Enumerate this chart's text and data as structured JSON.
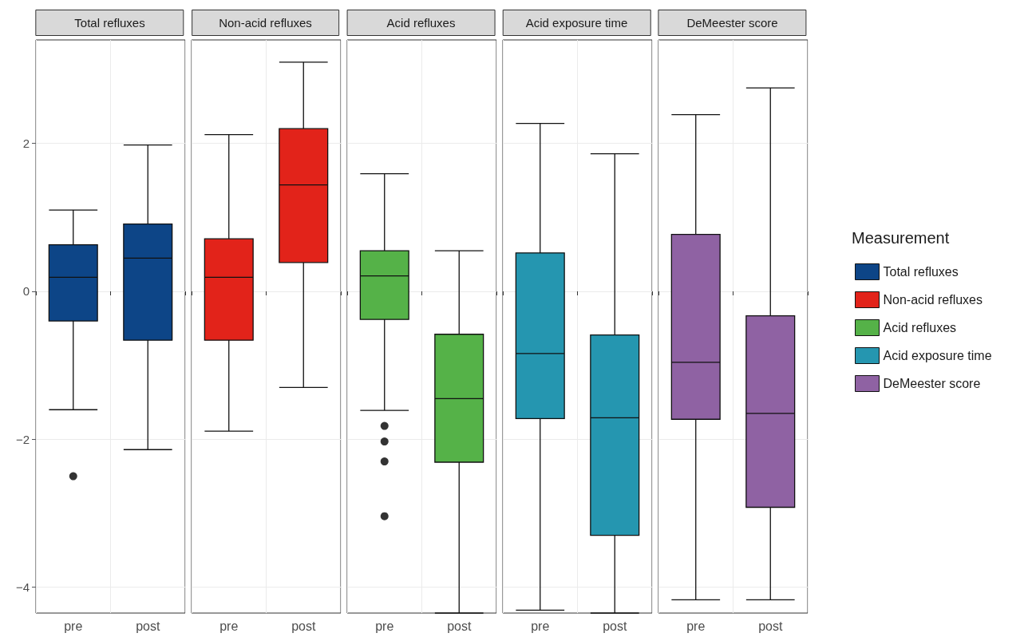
{
  "chart_data": [
    {
      "type": "box",
      "title": "Total refluxes",
      "categories": [
        "pre",
        "post"
      ],
      "ylim": [
        -4.35,
        3.4
      ],
      "yticks": [
        -4,
        -2,
        0,
        2
      ],
      "grid": true,
      "legend": "right",
      "series": [
        {
          "name": "Total refluxes",
          "color": "#0d4587",
          "boxes": [
            {
              "low": -1.6,
              "q1": -0.4,
              "median": 0.19,
              "q3": 0.63,
              "high": 1.1,
              "outliers": [
                -2.5
              ]
            },
            {
              "low": -2.14,
              "q1": -0.66,
              "median": 0.45,
              "q3": 0.91,
              "high": 1.98
            }
          ]
        }
      ]
    },
    {
      "type": "box",
      "title": "Non-acid refluxes",
      "categories": [
        "pre",
        "post"
      ],
      "ylim": [
        -4.35,
        3.4
      ],
      "yticks": [
        -4,
        -2,
        0,
        2
      ],
      "grid": true,
      "tick_labels": "x",
      "legend": "right",
      "series": [
        {
          "name": "Non-acid refluxes",
          "color": "#e2231a",
          "boxes": [
            {
              "low": -1.89,
              "q1": -0.66,
              "median": 0.19,
              "q3": 0.71,
              "high": 2.12
            },
            {
              "low": -1.3,
              "q1": 0.39,
              "median": 1.44,
              "q3": 2.2,
              "high": 3.1
            }
          ]
        }
      ]
    },
    {
      "type": "box",
      "title": "Acid refluxes",
      "categories": [
        "pre",
        "post"
      ],
      "ylim": [
        -4.35,
        3.4
      ],
      "yticks": [
        -4,
        -2,
        0,
        2
      ],
      "grid": true,
      "tick_labels": "x",
      "legend": "right",
      "series": [
        {
          "name": "Acid refluxes",
          "color": "#55b248",
          "boxes": [
            {
              "low": -1.61,
              "q1": -0.38,
              "median": 0.21,
              "q3": 0.55,
              "high": 1.59,
              "outliers": [
                -1.82,
                -2.03,
                -2.3,
                -3.04
              ]
            },
            {
              "low": -4.35,
              "q1": -2.31,
              "median": -1.45,
              "q3": -0.58,
              "high": 0.55
            }
          ]
        }
      ]
    },
    {
      "type": "box",
      "title": "Acid exposure time",
      "categories": [
        "pre",
        "post"
      ],
      "ylim": [
        -4.35,
        3.4
      ],
      "yticks": [
        -4,
        -2,
        0,
        2
      ],
      "grid": true,
      "tick_labels": "x",
      "legend": "right",
      "series": [
        {
          "name": "Acid exposure time",
          "color": "#2596b0",
          "boxes": [
            {
              "low": -4.31,
              "q1": -1.72,
              "median": -0.84,
              "q3": 0.52,
              "high": 2.27
            },
            {
              "low": -4.35,
              "q1": -3.3,
              "median": -1.71,
              "q3": -0.59,
              "high": 1.86
            }
          ]
        }
      ]
    },
    {
      "type": "box",
      "title": "DeMeester score",
      "categories": [
        "pre",
        "post"
      ],
      "ylim": [
        -4.35,
        3.4
      ],
      "yticks": [
        -4,
        -2,
        0,
        2
      ],
      "grid": true,
      "tick_labels": "x",
      "legend": "right",
      "legend_title": "Measurement",
      "series": [
        {
          "name": "DeMeester score",
          "color": "#8f62a3",
          "boxes": [
            {
              "low": -4.17,
              "q1": -1.73,
              "median": -0.96,
              "q3": 0.77,
              "high": 2.39
            },
            {
              "low": -4.17,
              "q1": -2.92,
              "median": -1.65,
              "q3": -0.33,
              "high": 2.75
            }
          ]
        }
      ]
    }
  ]
}
